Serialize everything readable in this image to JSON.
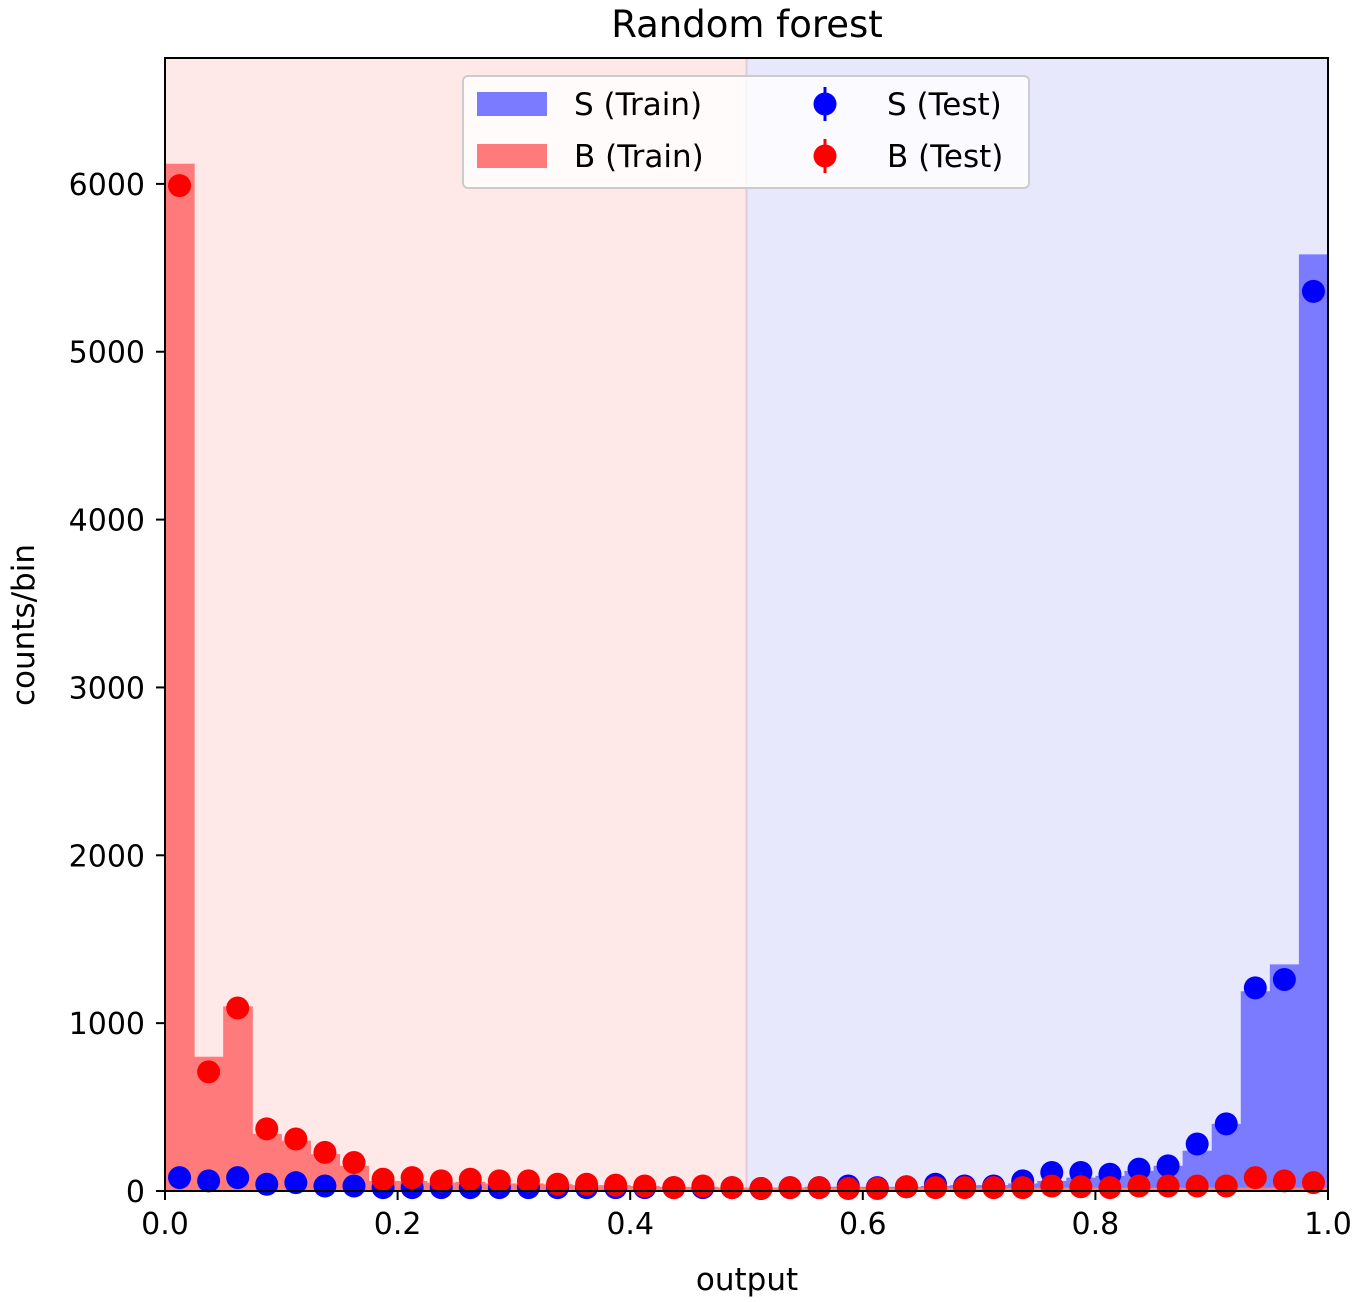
{
  "chart_data": {
    "type": "bar",
    "title": "Random forest",
    "xlabel": "output",
    "ylabel": "counts/bin",
    "xlim": [
      0.0,
      1.0
    ],
    "ylim": [
      0,
      6750
    ],
    "x_ticks": [
      0.0,
      0.2,
      0.4,
      0.6,
      0.8,
      1.0
    ],
    "x_tick_labels": [
      "0.0",
      "0.2",
      "0.4",
      "0.6",
      "0.8",
      "1.0"
    ],
    "y_ticks": [
      0,
      1000,
      2000,
      3000,
      4000,
      5000,
      6000
    ],
    "y_tick_labels": [
      "0",
      "1000",
      "2000",
      "3000",
      "4000",
      "5000",
      "6000"
    ],
    "grid": false,
    "legend_placement": "top-center",
    "bin_width": 0.025,
    "regions": [
      {
        "from": 0.0,
        "to": 0.5,
        "color": "#ffe8e8"
      },
      {
        "from": 0.5,
        "to": 1.0,
        "color": "#e8e8fc"
      }
    ],
    "threshold": 0.5,
    "bin_centers": [
      0.0125,
      0.0375,
      0.0625,
      0.0875,
      0.1125,
      0.1375,
      0.1625,
      0.1875,
      0.2125,
      0.2375,
      0.2625,
      0.2875,
      0.3125,
      0.3375,
      0.3625,
      0.3875,
      0.4125,
      0.4375,
      0.4625,
      0.4875,
      0.5125,
      0.5375,
      0.5625,
      0.5875,
      0.6125,
      0.6375,
      0.6625,
      0.6875,
      0.7125,
      0.7375,
      0.7625,
      0.7875,
      0.8125,
      0.8375,
      0.8625,
      0.8875,
      0.9125,
      0.9375,
      0.9625,
      0.9875
    ],
    "series": [
      {
        "name": "S (Train)",
        "kind": "histogram",
        "color": "#7b7bff",
        "values": [
          80,
          60,
          70,
          40,
          45,
          35,
          30,
          25,
          25,
          20,
          20,
          20,
          20,
          20,
          20,
          20,
          20,
          20,
          20,
          20,
          20,
          20,
          25,
          25,
          25,
          25,
          30,
          35,
          35,
          45,
          60,
          80,
          90,
          120,
          150,
          240,
          400,
          1190,
          1350,
          5580
        ]
      },
      {
        "name": "B (Train)",
        "kind": "histogram",
        "color": "#ff7b7b",
        "values": [
          6120,
          800,
          1100,
          340,
          300,
          220,
          150,
          60,
          60,
          50,
          55,
          45,
          45,
          40,
          35,
          35,
          30,
          25,
          25,
          20,
          20,
          20,
          20,
          20,
          20,
          20,
          20,
          20,
          20,
          20,
          20,
          20,
          20,
          20,
          20,
          20,
          20,
          20,
          20,
          20
        ]
      },
      {
        "name": "S (Test)",
        "kind": "points",
        "color": "#0000ff",
        "values": [
          80,
          60,
          80,
          40,
          50,
          30,
          30,
          20,
          20,
          20,
          20,
          20,
          20,
          20,
          20,
          20,
          20,
          20,
          20,
          20,
          15,
          20,
          20,
          30,
          20,
          25,
          40,
          30,
          30,
          60,
          110,
          110,
          100,
          130,
          150,
          280,
          400,
          1210,
          1260,
          5360
        ]
      },
      {
        "name": "B (Test)",
        "kind": "points",
        "color": "#ff0000",
        "values": [
          5990,
          710,
          1090,
          370,
          310,
          230,
          170,
          70,
          80,
          60,
          70,
          60,
          60,
          40,
          40,
          35,
          30,
          20,
          30,
          20,
          15,
          20,
          20,
          15,
          15,
          25,
          20,
          20,
          20,
          20,
          30,
          25,
          20,
          30,
          30,
          30,
          30,
          80,
          60,
          50
        ]
      }
    ]
  },
  "legend": [
    {
      "label": "S (Train)",
      "kind": "patch",
      "color": "#7b7bff"
    },
    {
      "label": "S (Test)",
      "kind": "marker",
      "color": "#0000ff"
    },
    {
      "label": "B (Train)",
      "kind": "patch",
      "color": "#ff7b7b"
    },
    {
      "label": "B (Test)",
      "kind": "marker",
      "color": "#ff0000"
    }
  ]
}
